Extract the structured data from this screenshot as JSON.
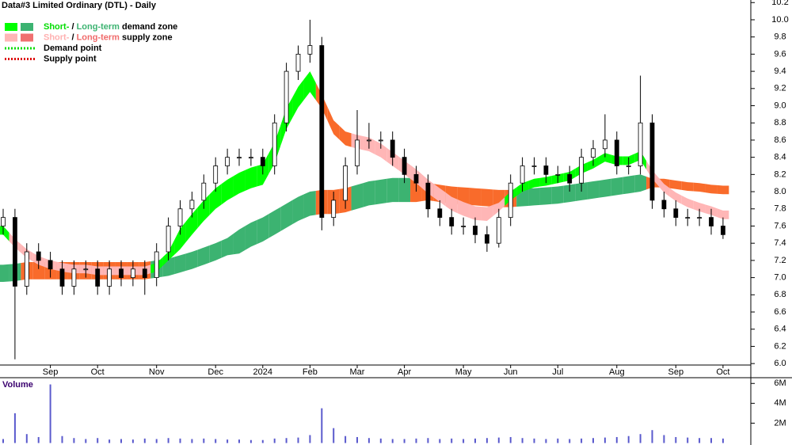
{
  "chart_data": {
    "type": "candlestick",
    "title": "Data#3 Limited Ordinary (DTL) - Daily",
    "legend": [
      {
        "parts": [
          "Short-",
          " / ",
          "Long-term",
          " demand zone"
        ],
        "part_colors": [
          "#00dd00",
          "#000000",
          "#3cb371",
          "#000000"
        ],
        "swatches": [
          "#00ff00",
          "#3cb371"
        ],
        "style": "zone"
      },
      {
        "parts": [
          "Short-",
          " / ",
          "Long-term",
          " supply zone"
        ],
        "part_colors": [
          "#ffb0b0",
          "#000000",
          "#f06a6a",
          "#000000"
        ],
        "swatches": [
          "#ffb6b6",
          "#f07070"
        ],
        "style": "zone"
      },
      {
        "parts": [
          "Demand point"
        ],
        "part_colors": [
          "#000000"
        ],
        "swatches": [
          "#00dd00"
        ],
        "style": "dotted"
      },
      {
        "parts": [
          "Supply point"
        ],
        "part_colors": [
          "#000000"
        ],
        "swatches": [
          "#dd0000"
        ],
        "style": "dotted"
      }
    ],
    "categories": [
      null,
      null,
      null,
      null,
      "Sep",
      null,
      null,
      null,
      "Oct",
      null,
      null,
      null,
      null,
      "Nov",
      null,
      null,
      null,
      null,
      "Dec",
      null,
      null,
      null,
      "2024",
      null,
      null,
      null,
      "Feb",
      null,
      null,
      null,
      "Mar",
      null,
      null,
      null,
      "Apr",
      null,
      null,
      null,
      null,
      "May",
      null,
      null,
      null,
      "Jun",
      null,
      null,
      null,
      "Jul",
      null,
      null,
      null,
      null,
      "Aug",
      null,
      null,
      null,
      null,
      "Sep",
      null,
      null,
      null,
      "Oct"
    ],
    "open": [
      7.6,
      7.7,
      6.9,
      7.3,
      7.2,
      7.1,
      6.9,
      7.1,
      7.1,
      6.9,
      7.1,
      7.0,
      7.1,
      7.0,
      7.3,
      7.6,
      7.8,
      7.9,
      8.1,
      8.3,
      8.4,
      8.4,
      8.4,
      8.3,
      8.8,
      9.4,
      9.6,
      9.7,
      7.7,
      7.9,
      8.3,
      8.6,
      8.6,
      8.6,
      8.4,
      8.2,
      8.1,
      7.8,
      7.7,
      7.6,
      7.6,
      7.5,
      7.4,
      7.7,
      8.1,
      8.3,
      8.3,
      8.2,
      8.2,
      8.1,
      8.4,
      8.5,
      8.6,
      8.3,
      8.3,
      8.8,
      7.9,
      7.8,
      7.7,
      7.7,
      7.7,
      7.6
    ],
    "high": [
      7.8,
      7.8,
      7.4,
      7.4,
      7.3,
      7.2,
      7.2,
      7.2,
      7.2,
      7.2,
      7.2,
      7.2,
      7.2,
      7.4,
      7.7,
      7.9,
      8.0,
      8.2,
      8.4,
      8.5,
      8.5,
      8.5,
      8.5,
      8.9,
      9.5,
      9.7,
      10.0,
      9.8,
      8.0,
      8.4,
      8.95,
      8.8,
      8.7,
      8.7,
      8.5,
      8.3,
      8.2,
      7.9,
      7.8,
      7.7,
      7.7,
      7.6,
      7.8,
      8.2,
      8.4,
      8.4,
      8.4,
      8.3,
      8.3,
      8.5,
      8.6,
      8.9,
      8.7,
      8.4,
      9.35,
      8.9,
      8.0,
      7.9,
      7.8,
      7.8,
      7.8,
      7.7
    ],
    "low": [
      7.5,
      6.05,
      6.8,
      7.1,
      7.0,
      6.8,
      6.8,
      7.0,
      6.8,
      6.8,
      6.9,
      6.9,
      6.8,
      6.9,
      7.2,
      7.5,
      7.7,
      7.8,
      8.0,
      8.2,
      8.3,
      8.3,
      8.2,
      8.2,
      8.7,
      9.3,
      9.5,
      7.55,
      7.6,
      7.8,
      8.2,
      8.5,
      8.5,
      8.3,
      8.1,
      8.0,
      7.7,
      7.6,
      7.5,
      7.5,
      7.4,
      7.3,
      7.35,
      7.6,
      8.0,
      8.2,
      8.1,
      8.1,
      8.0,
      8.0,
      8.3,
      8.4,
      8.2,
      8.2,
      8.2,
      7.8,
      7.7,
      7.6,
      7.6,
      7.6,
      7.5,
      7.45
    ],
    "close": [
      7.7,
      6.9,
      7.3,
      7.2,
      7.1,
      6.9,
      7.1,
      7.1,
      6.9,
      7.1,
      7.0,
      7.1,
      7.0,
      7.3,
      7.6,
      7.8,
      7.9,
      8.1,
      8.3,
      8.4,
      8.4,
      8.4,
      8.3,
      8.8,
      9.4,
      9.6,
      9.7,
      7.7,
      7.9,
      8.3,
      8.6,
      8.6,
      8.6,
      8.4,
      8.2,
      8.1,
      7.8,
      7.7,
      7.6,
      7.6,
      7.5,
      7.4,
      7.7,
      8.1,
      8.3,
      8.3,
      8.2,
      8.2,
      8.1,
      8.4,
      8.5,
      8.6,
      8.3,
      8.3,
      8.8,
      7.9,
      7.8,
      7.7,
      7.7,
      7.7,
      7.6,
      7.5
    ],
    "bands": [
      {
        "name": "Long-term",
        "lower": [
          6.95,
          6.96,
          6.98,
          6.98,
          6.98,
          6.98,
          6.98,
          6.98,
          6.98,
          6.98,
          6.98,
          6.98,
          6.98,
          7.0,
          7.02,
          7.06,
          7.1,
          7.15,
          7.2,
          7.26,
          7.28,
          7.36,
          7.42,
          7.5,
          7.58,
          7.66,
          7.72,
          7.74,
          7.74,
          7.76,
          7.8,
          7.84,
          7.86,
          7.88,
          7.88,
          7.88,
          7.9,
          7.88,
          7.86,
          7.85,
          7.84,
          7.83,
          7.82,
          7.82,
          7.83,
          7.84,
          7.85,
          7.86,
          7.88,
          7.9,
          7.92,
          7.94,
          7.96,
          7.98,
          8.0,
          8.05,
          8.05,
          8.03,
          8.01,
          8.0,
          7.98,
          7.97
        ],
        "upper": [
          7.15,
          7.16,
          7.18,
          7.18,
          7.18,
          7.18,
          7.18,
          7.18,
          7.18,
          7.18,
          7.18,
          7.18,
          7.18,
          7.2,
          7.22,
          7.26,
          7.3,
          7.35,
          7.4,
          7.46,
          7.56,
          7.64,
          7.7,
          7.78,
          7.86,
          7.94,
          8.0,
          8.02,
          8.02,
          8.04,
          8.08,
          8.12,
          8.14,
          8.16,
          8.16,
          8.16,
          8.1,
          8.08,
          8.06,
          8.05,
          8.04,
          8.03,
          8.02,
          8.02,
          8.03,
          8.04,
          8.05,
          8.06,
          8.08,
          8.1,
          8.12,
          8.14,
          8.16,
          8.18,
          8.2,
          8.15,
          8.15,
          8.13,
          8.11,
          8.1,
          8.08,
          8.07
        ],
        "colors": [
          "#3cb371",
          "#3cb371",
          "#f96b2b",
          "#f96b2b",
          "#f96b2b",
          "#f96b2b",
          "#f96b2b",
          "#f96b2b",
          "#f96b2b",
          "#f96b2b",
          "#f96b2b",
          "#f96b2b",
          "#f96b2b",
          "#3cb371",
          "#3cb371",
          "#3cb371",
          "#3cb371",
          "#3cb371",
          "#3cb371",
          "#3cb371",
          "#3cb371",
          "#3cb371",
          "#3cb371",
          "#3cb371",
          "#3cb371",
          "#3cb371",
          "#3cb371",
          "#f96b2b",
          "#f96b2b",
          "#f96b2b",
          "#3cb371",
          "#3cb371",
          "#3cb371",
          "#3cb371",
          "#3cb371",
          "#f96b2b",
          "#f96b2b",
          "#f96b2b",
          "#f96b2b",
          "#f96b2b",
          "#f96b2b",
          "#f96b2b",
          "#f96b2b",
          "#f96b2b",
          "#3cb371",
          "#3cb371",
          "#3cb371",
          "#3cb371",
          "#3cb371",
          "#3cb371",
          "#3cb371",
          "#3cb371",
          "#3cb371",
          "#3cb371",
          "#3cb371",
          "#f96b2b",
          "#f96b2b",
          "#f96b2b",
          "#f96b2b",
          "#f96b2b",
          "#f96b2b",
          "#f96b2b"
        ]
      },
      {
        "name": "Short-",
        "lower": [
          7.5,
          7.35,
          7.23,
          7.15,
          7.1,
          7.07,
          7.05,
          7.05,
          7.03,
          7.03,
          7.03,
          7.03,
          7.03,
          7.07,
          7.2,
          7.33,
          7.5,
          7.66,
          7.8,
          7.9,
          7.98,
          8.04,
          8.08,
          8.33,
          8.73,
          8.98,
          9.16,
          8.97,
          8.67,
          8.54,
          8.5,
          8.47,
          8.4,
          8.3,
          8.2,
          8.1,
          7.98,
          7.88,
          7.78,
          7.72,
          7.67,
          7.66,
          7.77,
          7.9,
          8.0,
          8.05,
          8.07,
          8.1,
          8.13,
          8.21,
          8.27,
          8.35,
          8.31,
          8.31,
          8.37,
          8.15,
          7.99,
          7.89,
          7.82,
          7.77,
          7.73,
          7.68
        ],
        "upper": [
          7.6,
          7.45,
          7.33,
          7.25,
          7.2,
          7.17,
          7.15,
          7.15,
          7.13,
          7.13,
          7.13,
          7.13,
          7.13,
          7.17,
          7.3,
          7.57,
          7.74,
          7.9,
          8.04,
          8.14,
          8.22,
          8.28,
          8.32,
          8.57,
          8.97,
          9.22,
          9.4,
          9.13,
          8.83,
          8.7,
          8.66,
          8.63,
          8.56,
          8.46,
          8.36,
          8.26,
          8.14,
          8.04,
          7.94,
          7.88,
          7.83,
          7.82,
          7.87,
          8.0,
          8.1,
          8.15,
          8.17,
          8.2,
          8.23,
          8.31,
          8.37,
          8.45,
          8.41,
          8.41,
          8.47,
          8.25,
          8.09,
          7.99,
          7.92,
          7.87,
          7.83,
          7.78
        ],
        "colors": [
          "#00ff00",
          "#ffb6b6",
          "#ffb6b6",
          "#ffb6b6",
          "#ffb6b6",
          "#ffb6b6",
          "#ffb6b6",
          "#ffb6b6",
          "#ffb6b6",
          "#ffb6b6",
          "#ffb6b6",
          "#ffb6b6",
          "#ffb6b6",
          "#00ff00",
          "#00ff00",
          "#00ff00",
          "#00ff00",
          "#00ff00",
          "#00ff00",
          "#00ff00",
          "#00ff00",
          "#00ff00",
          "#00ff00",
          "#00ff00",
          "#00ff00",
          "#00ff00",
          "#00ff00",
          "#f96b2b",
          "#f96b2b",
          "#f96b2b",
          "#ffb6b6",
          "#ffb6b6",
          "#ffb6b6",
          "#ffb6b6",
          "#ffb6b6",
          "#ffb6b6",
          "#ffb6b6",
          "#ffb6b6",
          "#ffb6b6",
          "#ffb6b6",
          "#ffb6b6",
          "#ffb6b6",
          "#ffb6b6",
          "#00ff00",
          "#00ff00",
          "#00ff00",
          "#00ff00",
          "#00ff00",
          "#00ff00",
          "#00ff00",
          "#00ff00",
          "#00ff00",
          "#00ff00",
          "#00ff00",
          "#00ff00",
          "#ffb6b6",
          "#ffb6b6",
          "#ffb6b6",
          "#ffb6b6",
          "#ffb6b6",
          "#ffb6b6",
          "#ffb6b6"
        ]
      }
    ],
    "ylim": [
      5.9,
      10.23
    ],
    "yticks": [
      {
        "value": 6,
        "label": "6.0"
      },
      6.2,
      6.4,
      6.6,
      6.8,
      {
        "value": 7,
        "label": "7.0"
      },
      7.2,
      7.4,
      7.6,
      7.8,
      {
        "value": 8,
        "label": "8.0"
      },
      8.2,
      8.4,
      8.6,
      8.8,
      {
        "value": 9,
        "label": "9.0"
      },
      9.2,
      9.4,
      9.6,
      9.8,
      {
        "value": 10,
        "label": "10.0"
      },
      10.2
    ],
    "volume": {
      "title": "Volume",
      "color": "#5a5acd",
      "values": [
        400000,
        3000000,
        900000,
        600000,
        5900000,
        700000,
        500000,
        400000,
        500000,
        350000,
        400000,
        350000,
        450000,
        400000,
        500000,
        450000,
        400000,
        450000,
        400000,
        350000,
        350000,
        300000,
        300000,
        450000,
        500000,
        550000,
        800000,
        3500000,
        1500000,
        700000,
        600000,
        500000,
        450000,
        400000,
        400000,
        450000,
        500000,
        400000,
        450000,
        400000,
        450000,
        500000,
        550000,
        600000,
        500000,
        450000,
        400000,
        450000,
        400000,
        450000,
        500000,
        550000,
        600000,
        700000,
        900000,
        1300000,
        800000,
        600000,
        550000,
        500000,
        500000,
        450000
      ],
      "ylim": [
        -200000,
        6500000
      ],
      "yticks": [
        {
          "value": 2000000,
          "label": "2M"
        },
        {
          "value": 4000000,
          "label": "4M"
        },
        {
          "value": 6000000,
          "label": "6M"
        }
      ]
    }
  }
}
